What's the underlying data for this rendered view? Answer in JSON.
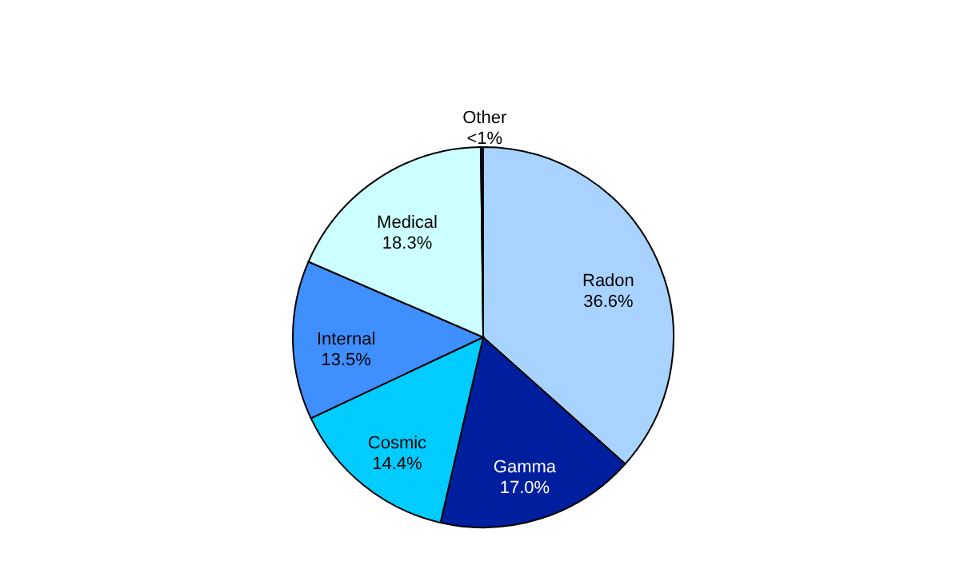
{
  "chart_data": {
    "type": "pie",
    "categories": [
      "Radon",
      "Gamma",
      "Cosmic",
      "Internal",
      "Medical",
      "Other"
    ],
    "values": [
      36.6,
      17.0,
      14.4,
      13.5,
      18.3,
      0.2
    ],
    "value_labels": [
      "36.6%",
      "17.0%",
      "14.4%",
      "13.5%",
      "18.3%",
      "<1%"
    ],
    "colors": [
      "#a9d3ff",
      "#001f9f",
      "#00ccff",
      "#3f8fff",
      "#ccffff",
      "#1a1a66"
    ]
  }
}
